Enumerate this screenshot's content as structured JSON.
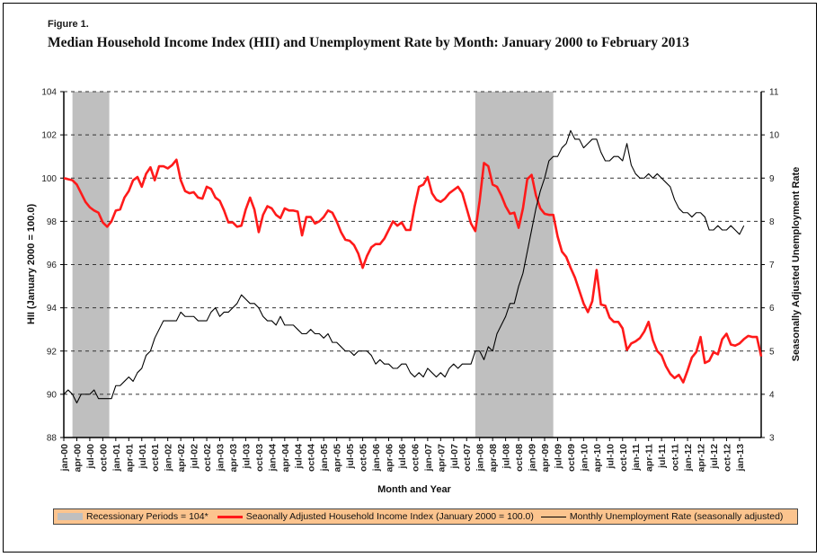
{
  "figure_label": "Figure 1.",
  "chart_data": {
    "type": "line",
    "title": "Median Household Income Index (HII) and Unemployment Rate by Month: January 2000 to February 2013",
    "xlabel": "Month and Year",
    "ylabel_left": "HII (January 2000 = 100.0)",
    "ylabel_right": "Seasonally Adjusted Unemployment Rate",
    "ylim_left": [
      88,
      104
    ],
    "ylim_right": [
      3,
      11
    ],
    "yticks_left": [
      "88",
      "90",
      "92",
      "94",
      "96",
      "98",
      "100",
      "102",
      "104"
    ],
    "yticks_right": [
      "3",
      "4",
      "5",
      "6",
      "7",
      "8",
      "9",
      "10",
      "11"
    ],
    "grid": "horizontal dashed",
    "x_start": "jan-00",
    "x_end": "feb-13",
    "xticks": [
      "jan-00",
      "apr-00",
      "jul-00",
      "oct-00",
      "jan-01",
      "apr-01",
      "jul-01",
      "oct-01",
      "jan-02",
      "apr-02",
      "jul-02",
      "oct-02",
      "jan-03",
      "apr-03",
      "jul-03",
      "oct-03",
      "jan-04",
      "apr-04",
      "jul-04",
      "oct-04",
      "jan-05",
      "apr-05",
      "jul-05",
      "oct-05",
      "jan-06",
      "apr-06",
      "jul-06",
      "oct-06",
      "jan-07",
      "apr-07",
      "jul-07",
      "oct-07",
      "jan-08",
      "apr-08",
      "jul-08",
      "oct-08",
      "jan-09",
      "apr-09",
      "jul-09",
      "oct-09",
      "jan-10",
      "apr-10",
      "jul-10",
      "oct-10",
      "jan-11",
      "apr-11",
      "jul-11",
      "oct-11",
      "jan-12",
      "apr-12",
      "jul-12",
      "oct-12",
      "jan-13"
    ],
    "recessions": [
      {
        "start_month_index": 2,
        "end_month_index": 10.5,
        "value": 104
      },
      {
        "start_month_index": 95,
        "end_month_index": 113,
        "value": 104
      }
    ],
    "legend_position": "bottom",
    "legend": [
      "Recessionary Periods = 104*",
      "Seaonally Adjusted Household Income Index (January 2000 = 100.0)",
      "Monthly Unemployment Rate (seasonally adjusted)"
    ],
    "series": [
      {
        "name": "Seaonally Adjusted Household Income Index (January 2000 = 100.0)",
        "axis": "left",
        "color": "#ff1a1a",
        "values": [
          100.0,
          99.95,
          99.9,
          99.7,
          99.3,
          98.9,
          98.65,
          98.5,
          98.4,
          97.95,
          97.75,
          98.0,
          98.5,
          98.55,
          99.1,
          99.4,
          99.9,
          100.05,
          99.6,
          100.2,
          100.5,
          99.9,
          100.55,
          100.55,
          100.45,
          100.6,
          100.85,
          99.9,
          99.4,
          99.3,
          99.35,
          99.1,
          99.05,
          99.6,
          99.5,
          99.1,
          98.95,
          98.5,
          97.95,
          97.95,
          97.75,
          97.8,
          98.55,
          99.1,
          98.55,
          97.5,
          98.3,
          98.7,
          98.6,
          98.3,
          98.15,
          98.6,
          98.5,
          98.5,
          98.45,
          97.35,
          98.2,
          98.2,
          97.9,
          98.0,
          98.2,
          98.5,
          98.4,
          98.0,
          97.5,
          97.15,
          97.1,
          96.9,
          96.5,
          95.85,
          96.4,
          96.8,
          96.95,
          96.95,
          97.2,
          97.6,
          98.0,
          97.8,
          97.95,
          97.6,
          97.6,
          98.7,
          99.6,
          99.7,
          100.05,
          99.3,
          99.0,
          98.9,
          99.05,
          99.3,
          99.45,
          99.6,
          99.3,
          98.6,
          97.9,
          97.55,
          98.95,
          100.7,
          100.55,
          99.7,
          99.6,
          99.2,
          98.7,
          98.35,
          98.4,
          97.7,
          98.6,
          99.95,
          100.15,
          99.2,
          98.6,
          98.35,
          98.3,
          98.3,
          97.3,
          96.6,
          96.35,
          95.85,
          95.4,
          94.8,
          94.2,
          93.8,
          94.3,
          95.75,
          94.15,
          94.1,
          93.55,
          93.35,
          93.35,
          93.05,
          92.05,
          92.35,
          92.45,
          92.6,
          92.9,
          93.35,
          92.5,
          92.0,
          91.8,
          91.3,
          90.95,
          90.75,
          90.9,
          90.55,
          91.1,
          91.7,
          91.95,
          92.65,
          91.45,
          91.55,
          91.95,
          91.85,
          92.55,
          92.8,
          92.3,
          92.25,
          92.35,
          92.55,
          92.7,
          92.65,
          92.65,
          91.75
        ]
      },
      {
        "name": "Monthly Unemployment Rate (seasonally adjusted)",
        "axis": "right",
        "color": "#000000",
        "values": [
          4.0,
          4.1,
          4.0,
          3.8,
          4.0,
          4.0,
          4.0,
          4.1,
          3.9,
          3.9,
          3.9,
          3.9,
          4.2,
          4.2,
          4.3,
          4.4,
          4.3,
          4.5,
          4.6,
          4.9,
          5.0,
          5.3,
          5.5,
          5.7,
          5.7,
          5.7,
          5.7,
          5.9,
          5.8,
          5.8,
          5.8,
          5.7,
          5.7,
          5.7,
          5.9,
          6.0,
          5.8,
          5.9,
          5.9,
          6.0,
          6.1,
          6.3,
          6.2,
          6.1,
          6.1,
          6.0,
          5.8,
          5.7,
          5.7,
          5.6,
          5.8,
          5.6,
          5.6,
          5.6,
          5.5,
          5.4,
          5.4,
          5.5,
          5.4,
          5.4,
          5.3,
          5.4,
          5.2,
          5.2,
          5.1,
          5.0,
          5.0,
          4.9,
          5.0,
          5.0,
          5.0,
          4.9,
          4.7,
          4.8,
          4.7,
          4.7,
          4.6,
          4.6,
          4.7,
          4.7,
          4.5,
          4.4,
          4.5,
          4.4,
          4.6,
          4.5,
          4.4,
          4.5,
          4.4,
          4.6,
          4.7,
          4.6,
          4.7,
          4.7,
          4.7,
          5.0,
          5.0,
          4.8,
          5.1,
          5.0,
          5.4,
          5.6,
          5.8,
          6.1,
          6.1,
          6.5,
          6.8,
          7.3,
          7.8,
          8.3,
          8.7,
          9.0,
          9.4,
          9.5,
          9.5,
          9.7,
          9.8,
          10.1,
          9.9,
          9.9,
          9.7,
          9.8,
          9.9,
          9.9,
          9.6,
          9.4,
          9.4,
          9.5,
          9.5,
          9.4,
          9.8,
          9.3,
          9.1,
          9.0,
          9.0,
          9.1,
          9.0,
          9.1,
          9.0,
          8.9,
          8.8,
          8.5,
          8.3,
          8.2,
          8.2,
          8.1,
          8.2,
          8.2,
          8.1,
          7.8,
          7.8,
          7.9,
          7.8,
          7.8,
          7.9,
          7.8,
          7.7,
          7.9
        ]
      }
    ]
  }
}
